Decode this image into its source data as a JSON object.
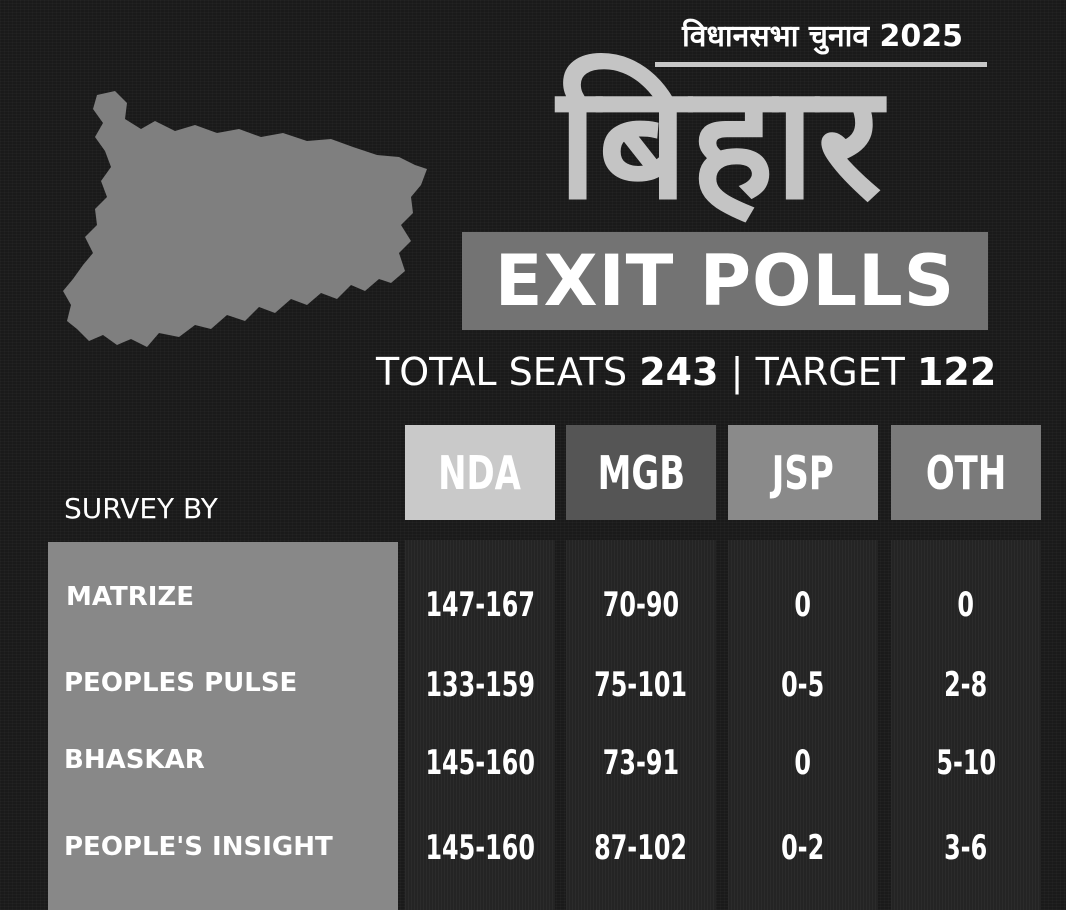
{
  "subtitle": "विधानसभा चुनाव 2025",
  "title": "बिहार",
  "banner": "EXIT POLLS",
  "seats": {
    "total_label": "TOTAL SEATS",
    "total_value": "243",
    "separator": "|",
    "target_label": "TARGET",
    "target_value": "122"
  },
  "survey_label": "SURVEY BY",
  "columns": [
    {
      "label": "NDA",
      "color": "#c9c9c9"
    },
    {
      "label": "MGB",
      "color": "#555555"
    },
    {
      "label": "JSP",
      "color": "#8a8a8a"
    },
    {
      "label": "OTH",
      "color": "#7a7a7a"
    }
  ],
  "rows": [
    {
      "name": "MATRIZE",
      "values": [
        "147-167",
        "70-90",
        "0",
        "0"
      ]
    },
    {
      "name": "PEOPLES PULSE",
      "values": [
        "133-159",
        "75-101",
        "0-5",
        "2-8"
      ]
    },
    {
      "name": "BHASKAR",
      "values": [
        "145-160",
        "73-91",
        "0",
        "5-10"
      ]
    },
    {
      "name": "PEOPLE'S INSIGHT",
      "values": [
        "145-160",
        "87-102",
        "0-2",
        "3-6"
      ]
    }
  ]
}
